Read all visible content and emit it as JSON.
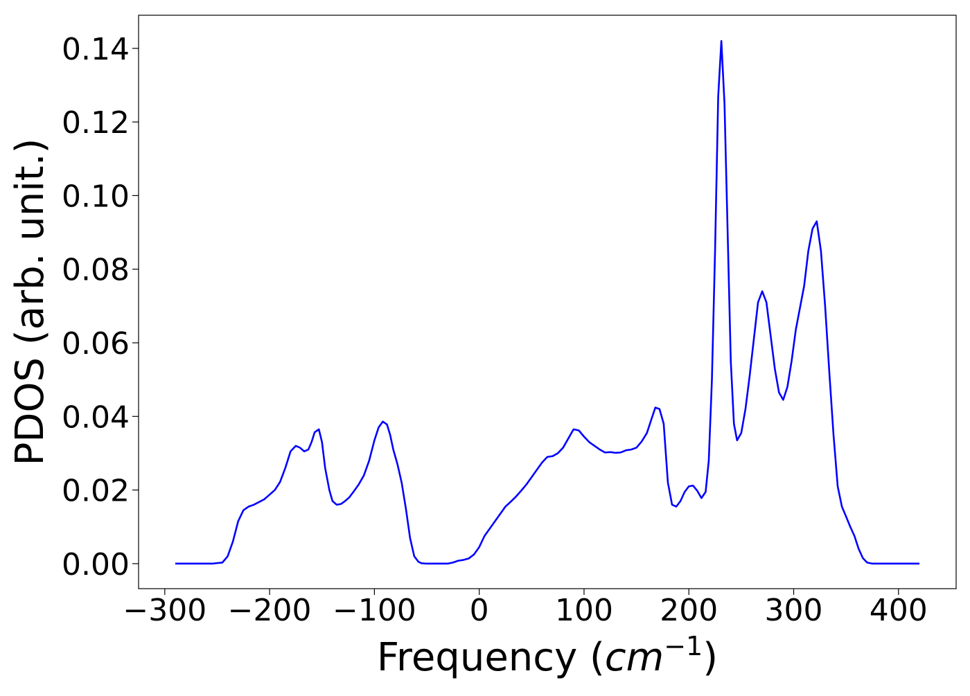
{
  "chart_data": {
    "type": "line",
    "title": "",
    "xlabel": "Frequency (cm⁻¹)",
    "xlabel_parts": {
      "prefix": "Frequency (",
      "italic": "cm",
      "superscript": "−1",
      "suffix": ")"
    },
    "ylabel": "PDOS (arb. unit.)",
    "xlim": [
      -325,
      455
    ],
    "ylim": [
      -0.0068,
      0.149
    ],
    "xticks": [
      -300,
      -200,
      -100,
      0,
      100,
      200,
      300,
      400
    ],
    "xtick_labels": [
      "−300",
      "−200",
      "−100",
      "0",
      "100",
      "200",
      "300",
      "400"
    ],
    "yticks": [
      0.0,
      0.02,
      0.04,
      0.06,
      0.08,
      0.1,
      0.12,
      0.14
    ],
    "ytick_labels": [
      "0.00",
      "0.02",
      "0.04",
      "0.06",
      "0.08",
      "0.10",
      "0.12",
      "0.14"
    ],
    "grid": false,
    "line_color": "#0000ff",
    "series": [
      {
        "x": [
          -290,
          -270,
          -255,
          -245,
          -240,
          -235,
          -230,
          -225,
          -220,
          -215,
          -205,
          -195,
          -190,
          -185,
          -180,
          -175,
          -171,
          -167,
          -163,
          -160,
          -157,
          -153,
          -150,
          -147,
          -143,
          -140,
          -136,
          -132,
          -128,
          -124,
          -120,
          -115,
          -110,
          -105,
          -100,
          -96,
          -92,
          -88,
          -85,
          -82,
          -78,
          -74,
          -70,
          -66,
          -62,
          -58,
          -55,
          -50,
          -45,
          -40,
          -30,
          -25,
          -20,
          -15,
          -10,
          -5,
          0,
          5,
          10,
          15,
          20,
          25,
          30,
          35,
          40,
          45,
          50,
          55,
          60,
          65,
          70,
          75,
          80,
          85,
          90,
          95,
          100,
          105,
          110,
          115,
          120,
          125,
          130,
          135,
          140,
          145,
          150,
          155,
          160,
          164,
          168,
          172,
          176,
          180,
          184,
          188,
          192,
          196,
          200,
          204,
          208,
          212,
          216,
          219,
          222,
          225,
          228,
          231,
          234,
          237,
          240,
          243,
          246,
          250,
          254,
          258,
          262,
          266,
          270,
          274,
          278,
          282,
          286,
          290,
          294,
          298,
          302,
          306,
          310,
          314,
          318,
          322,
          326,
          330,
          334,
          338,
          342,
          346,
          350,
          354,
          358,
          362,
          366,
          370,
          375,
          380,
          390,
          420
        ],
        "y": [
          0.0,
          0.0,
          0.0,
          0.0003,
          0.002,
          0.006,
          0.0115,
          0.0145,
          0.0155,
          0.016,
          0.0175,
          0.02,
          0.0222,
          0.026,
          0.0305,
          0.032,
          0.0315,
          0.0305,
          0.031,
          0.033,
          0.0357,
          0.0365,
          0.033,
          0.026,
          0.02,
          0.017,
          0.016,
          0.0162,
          0.017,
          0.018,
          0.0195,
          0.0215,
          0.024,
          0.028,
          0.0335,
          0.037,
          0.0386,
          0.0378,
          0.035,
          0.031,
          0.027,
          0.022,
          0.015,
          0.007,
          0.002,
          0.0005,
          0.0001,
          0.0,
          0.0,
          0.0,
          0.0,
          0.0003,
          0.0008,
          0.001,
          0.0014,
          0.0025,
          0.0045,
          0.0075,
          0.0095,
          0.0115,
          0.0135,
          0.0155,
          0.0168,
          0.0182,
          0.0198,
          0.0215,
          0.0235,
          0.0255,
          0.0275,
          0.029,
          0.0292,
          0.03,
          0.0315,
          0.034,
          0.0365,
          0.0362,
          0.0345,
          0.033,
          0.032,
          0.031,
          0.0302,
          0.0303,
          0.0301,
          0.0302,
          0.0308,
          0.031,
          0.0315,
          0.0332,
          0.0355,
          0.039,
          0.0424,
          0.042,
          0.038,
          0.022,
          0.016,
          0.0155,
          0.017,
          0.0195,
          0.021,
          0.0212,
          0.0198,
          0.0178,
          0.0195,
          0.028,
          0.05,
          0.085,
          0.127,
          0.142,
          0.125,
          0.09,
          0.055,
          0.038,
          0.0335,
          0.0355,
          0.042,
          0.051,
          0.061,
          0.071,
          0.074,
          0.071,
          0.062,
          0.053,
          0.0465,
          0.0445,
          0.048,
          0.055,
          0.0635,
          0.0695,
          0.0755,
          0.085,
          0.091,
          0.093,
          0.085,
          0.07,
          0.052,
          0.035,
          0.021,
          0.0155,
          0.0128,
          0.01,
          0.0075,
          0.004,
          0.0015,
          0.0003,
          0.0,
          0.0,
          0.0,
          0.0
        ]
      }
    ]
  }
}
